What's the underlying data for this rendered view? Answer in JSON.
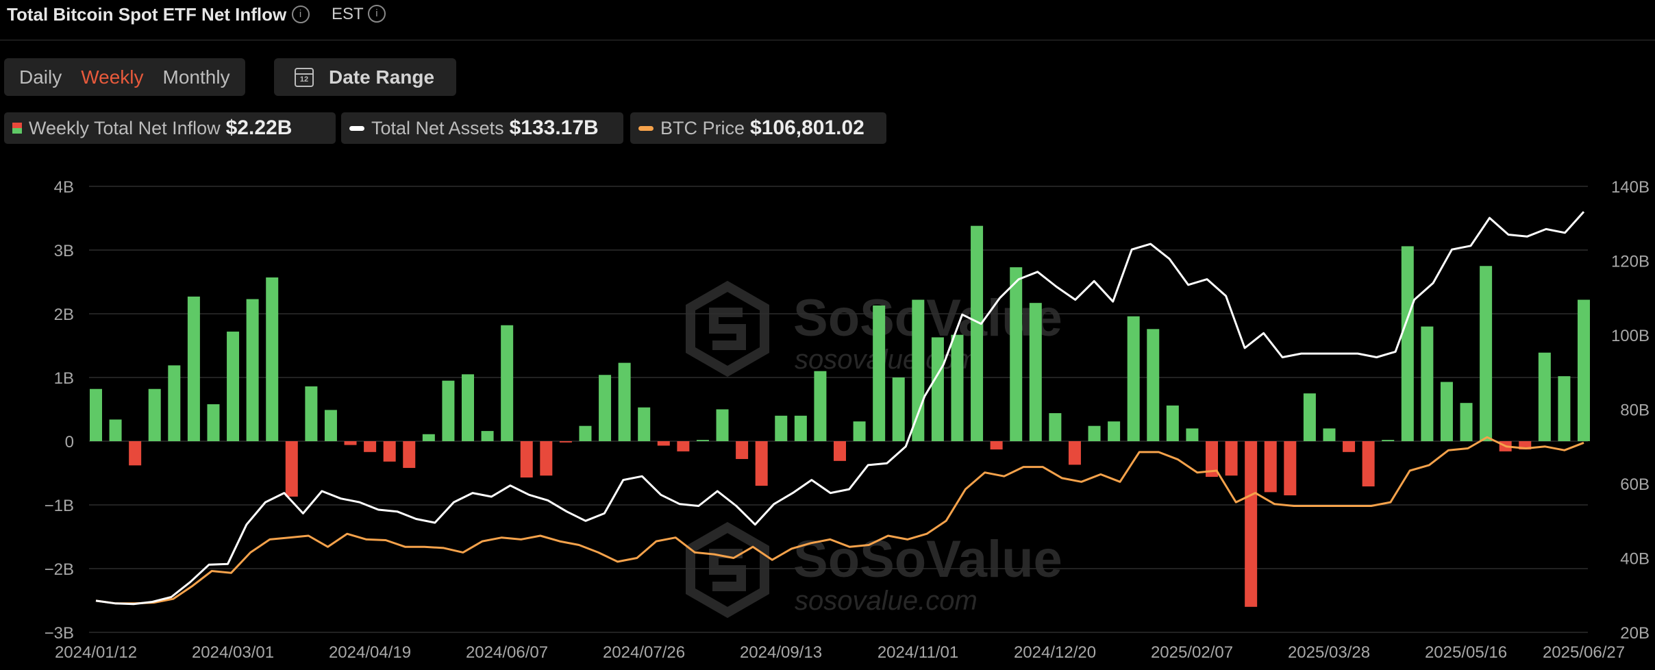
{
  "header": {
    "title": "Total Bitcoin Spot ETF Net Inflow",
    "timezone": "EST",
    "info_icon": "i"
  },
  "periods": [
    "Daily",
    "Weekly",
    "Monthly"
  ],
  "active_period": "Weekly",
  "date_range": {
    "label": "Date Range",
    "icon_text": "12"
  },
  "legend": [
    {
      "name": "Weekly Total Net Inflow",
      "value": "$2.22B"
    },
    {
      "name": "Total Net Assets",
      "value": "$133.17B"
    },
    {
      "name": "BTC Price",
      "value": "$106,801.02"
    }
  ],
  "watermark": {
    "brand": "SoSoValue",
    "url": "sosovalue.com"
  },
  "colors": {
    "positive": "#5fc966",
    "negative": "#e8493b",
    "assets": "#ffffff",
    "price": "#f5a24b",
    "grid": "#2e2e2e",
    "axis_text": "#a8a8a8"
  },
  "chart_data": {
    "type": "bar",
    "title": "Total Bitcoin Spot ETF Net Inflow",
    "x_tick_labels": [
      "2024/01/12",
      "2024/03/01",
      "2024/04/19",
      "2024/06/07",
      "2024/07/26",
      "2024/09/13",
      "2024/11/01",
      "2024/12/20",
      "2025/02/07",
      "2025/03/28",
      "2025/05/16",
      "2025/06/27"
    ],
    "x_start": "2024/01/12",
    "x_end": "2025/06/27",
    "left_axis": {
      "ticks": [
        "4B",
        "3B",
        "2B",
        "1B",
        "0",
        "−1B",
        "−2B",
        "−3B"
      ],
      "min": -3,
      "max": 4,
      "unit": "B USD"
    },
    "right_axis": {
      "ticks": [
        "140B",
        "120B",
        "100B",
        "80B",
        "60B",
        "40B",
        "20B"
      ],
      "min": 20,
      "max": 140,
      "unit": "B USD"
    },
    "grid": true,
    "series": [
      {
        "name": "Weekly Total Net Inflow",
        "axis": "left",
        "kind": "bar",
        "values": [
          0.82,
          0.34,
          -0.38,
          0.82,
          1.19,
          2.27,
          0.58,
          1.72,
          2.23,
          2.57,
          -0.87,
          0.86,
          0.49,
          -0.06,
          -0.17,
          -0.32,
          -0.42,
          0.11,
          0.95,
          1.05,
          0.16,
          1.82,
          -0.57,
          -0.54,
          -0.02,
          0.24,
          1.04,
          1.23,
          0.53,
          -0.07,
          -0.16,
          0.02,
          0.5,
          -0.28,
          -0.7,
          0.4,
          0.4,
          1.1,
          -0.31,
          0.31,
          2.13,
          1.0,
          2.22,
          1.63,
          1.67,
          3.38,
          -0.13,
          2.73,
          2.17,
          0.44,
          -0.37,
          0.24,
          0.31,
          1.96,
          1.76,
          0.56,
          0.2,
          -0.56,
          -0.54,
          -2.6,
          -0.8,
          -0.85,
          0.75,
          0.2,
          -0.17,
          -0.71,
          0.02,
          3.06,
          1.8,
          0.93,
          0.6,
          2.75,
          -0.16,
          -0.13,
          1.39,
          1.02,
          2.22
        ]
      },
      {
        "name": "Total Net Assets",
        "axis": "right",
        "kind": "line",
        "values": [
          28.5,
          27.8,
          27.6,
          28.2,
          29.5,
          33.5,
          38.2,
          38.4,
          49.0,
          55.0,
          57.5,
          52.0,
          58.0,
          56.0,
          55.0,
          53.0,
          52.5,
          50.5,
          49.5,
          55.0,
          57.5,
          56.5,
          59.5,
          57.0,
          55.5,
          52.5,
          50.0,
          52.0,
          61.0,
          62.0,
          57.0,
          54.5,
          54.0,
          58.0,
          54.0,
          49.0,
          54.5,
          57.5,
          61.0,
          57.5,
          58.5,
          65.0,
          65.5,
          70.0,
          83.5,
          92.0,
          105.5,
          103.0,
          110.0,
          115.0,
          117.0,
          113.0,
          109.5,
          114.5,
          109.0,
          123.0,
          124.5,
          120.5,
          113.5,
          115.0,
          110.5,
          96.5,
          100.5,
          94.0,
          95.0,
          95.0,
          95.0,
          95.0,
          94.0,
          95.5,
          109.5,
          114.0,
          123.0,
          124.0,
          131.5,
          127.0,
          126.5,
          128.5,
          127.5,
          133.17
        ]
      },
      {
        "name": "BTC Price",
        "axis": "right",
        "kind": "line",
        "values": [
          28.5,
          27.8,
          27.8,
          28.0,
          29.0,
          32.5,
          36.5,
          36.0,
          41.5,
          45.0,
          45.5,
          46.0,
          43.0,
          46.5,
          45.0,
          44.8,
          43.0,
          43.0,
          42.7,
          41.5,
          44.5,
          45.5,
          45.0,
          46.0,
          44.5,
          43.5,
          41.5,
          39.0,
          40.0,
          44.5,
          45.5,
          41.5,
          41.0,
          40.0,
          43.0,
          39.5,
          42.5,
          44.0,
          45.0,
          43.0,
          43.5,
          46.0,
          45.0,
          46.5,
          50.0,
          58.5,
          63.0,
          62.0,
          64.5,
          64.5,
          61.5,
          60.5,
          62.5,
          60.5,
          68.5,
          68.5,
          66.5,
          63.0,
          63.5,
          55.0,
          57.5,
          54.5,
          54.0,
          54.0,
          54.0,
          54.0,
          54.0,
          55.0,
          63.5,
          65.0,
          69.0,
          69.5,
          72.5,
          70.0,
          69.5,
          70.0,
          69.0,
          71.0
        ]
      }
    ]
  }
}
